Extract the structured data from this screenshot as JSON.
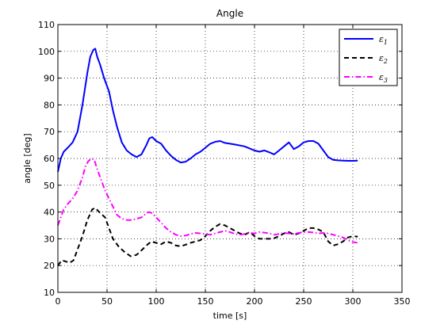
{
  "chart_data": {
    "type": "line",
    "title": "Angle",
    "xlabel": "time [s]",
    "ylabel": "angle [deg]",
    "xlim": [
      0,
      350
    ],
    "ylim": [
      10,
      110
    ],
    "xticks": [
      0,
      50,
      100,
      150,
      200,
      250,
      300,
      350
    ],
    "yticks": [
      10,
      20,
      30,
      40,
      50,
      60,
      70,
      80,
      90,
      100,
      110
    ],
    "grid": true,
    "legend_position": "top-right",
    "series": [
      {
        "name": "ε1",
        "sub": "1",
        "color": "#0000ff",
        "dash": "solid",
        "points": [
          [
            0,
            55
          ],
          [
            3,
            60
          ],
          [
            6,
            62.5
          ],
          [
            10,
            64
          ],
          [
            15,
            66
          ],
          [
            20,
            70
          ],
          [
            25,
            80
          ],
          [
            30,
            92
          ],
          [
            33,
            98
          ],
          [
            36,
            100.5
          ],
          [
            38,
            101
          ],
          [
            40,
            98
          ],
          [
            43,
            95
          ],
          [
            47,
            90
          ],
          [
            52,
            85
          ],
          [
            56,
            78
          ],
          [
            60,
            72
          ],
          [
            65,
            66
          ],
          [
            70,
            63
          ],
          [
            75,
            61.5
          ],
          [
            80,
            60.5
          ],
          [
            85,
            61.5
          ],
          [
            90,
            65
          ],
          [
            93,
            67.5
          ],
          [
            96,
            68
          ],
          [
            100,
            66.5
          ],
          [
            105,
            65.5
          ],
          [
            110,
            63
          ],
          [
            115,
            61
          ],
          [
            120,
            59.5
          ],
          [
            125,
            58.5
          ],
          [
            130,
            58.8
          ],
          [
            135,
            60
          ],
          [
            140,
            61.5
          ],
          [
            145,
            62.5
          ],
          [
            150,
            64
          ],
          [
            155,
            65.5
          ],
          [
            160,
            66.2
          ],
          [
            165,
            66.5
          ],
          [
            170,
            65.8
          ],
          [
            180,
            65.2
          ],
          [
            190,
            64.5
          ],
          [
            200,
            63
          ],
          [
            205,
            62.5
          ],
          [
            210,
            63
          ],
          [
            215,
            62.3
          ],
          [
            220,
            61.5
          ],
          [
            225,
            63
          ],
          [
            230,
            64.5
          ],
          [
            235,
            66
          ],
          [
            240,
            63.5
          ],
          [
            245,
            64.5
          ],
          [
            250,
            66
          ],
          [
            255,
            66.5
          ],
          [
            260,
            66.5
          ],
          [
            265,
            65.5
          ],
          [
            270,
            63
          ],
          [
            275,
            60.5
          ],
          [
            280,
            59.5
          ],
          [
            285,
            59.3
          ],
          [
            290,
            59.2
          ],
          [
            295,
            59.1
          ],
          [
            300,
            59.1
          ],
          [
            305,
            59.2
          ]
        ]
      },
      {
        "name": "ε2",
        "sub": "2",
        "color": "#000000",
        "dash": "dashed",
        "points": [
          [
            0,
            20
          ],
          [
            4,
            22
          ],
          [
            8,
            21.5
          ],
          [
            12,
            21
          ],
          [
            16,
            22
          ],
          [
            20,
            26
          ],
          [
            25,
            31
          ],
          [
            30,
            37
          ],
          [
            35,
            41
          ],
          [
            38,
            41.5
          ],
          [
            42,
            40
          ],
          [
            48,
            38
          ],
          [
            52,
            34
          ],
          [
            56,
            30
          ],
          [
            62,
            27
          ],
          [
            68,
            25
          ],
          [
            74,
            23.5
          ],
          [
            80,
            24
          ],
          [
            86,
            26
          ],
          [
            90,
            27.5
          ],
          [
            95,
            29
          ],
          [
            100,
            28.5
          ],
          [
            105,
            28
          ],
          [
            110,
            29
          ],
          [
            115,
            28.5
          ],
          [
            120,
            27.5
          ],
          [
            125,
            27.2
          ],
          [
            130,
            27.8
          ],
          [
            135,
            28.5
          ],
          [
            140,
            29
          ],
          [
            145,
            29.5
          ],
          [
            150,
            31
          ],
          [
            155,
            33
          ],
          [
            160,
            34.5
          ],
          [
            165,
            35.5
          ],
          [
            170,
            35
          ],
          [
            175,
            34
          ],
          [
            180,
            33
          ],
          [
            185,
            32
          ],
          [
            190,
            31.5
          ],
          [
            195,
            32.5
          ],
          [
            200,
            31
          ],
          [
            205,
            30
          ],
          [
            210,
            30
          ],
          [
            215,
            30
          ],
          [
            220,
            30.2
          ],
          [
            225,
            31
          ],
          [
            230,
            32
          ],
          [
            235,
            32.5
          ],
          [
            240,
            31.5
          ],
          [
            245,
            32
          ],
          [
            250,
            33
          ],
          [
            255,
            34
          ],
          [
            260,
            34
          ],
          [
            265,
            33.5
          ],
          [
            270,
            32.5
          ],
          [
            275,
            29
          ],
          [
            280,
            27.5
          ],
          [
            285,
            28
          ],
          [
            290,
            29
          ],
          [
            295,
            30.5
          ],
          [
            300,
            31
          ],
          [
            305,
            30.8
          ]
        ]
      },
      {
        "name": "ε3",
        "sub": "3",
        "color": "#ff00ff",
        "dash": "dashdot",
        "points": [
          [
            0,
            35
          ],
          [
            3,
            38
          ],
          [
            6,
            41
          ],
          [
            10,
            43
          ],
          [
            15,
            45
          ],
          [
            20,
            48
          ],
          [
            25,
            53
          ],
          [
            28,
            57
          ],
          [
            31,
            59
          ],
          [
            34,
            60
          ],
          [
            37,
            59.5
          ],
          [
            40,
            56
          ],
          [
            44,
            52
          ],
          [
            48,
            48
          ],
          [
            52,
            45
          ],
          [
            56,
            42
          ],
          [
            60,
            39
          ],
          [
            65,
            37.5
          ],
          [
            70,
            37
          ],
          [
            75,
            37
          ],
          [
            80,
            37.5
          ],
          [
            85,
            38
          ],
          [
            90,
            39.5
          ],
          [
            93,
            40
          ],
          [
            96,
            39.5
          ],
          [
            100,
            38
          ],
          [
            105,
            36
          ],
          [
            110,
            34
          ],
          [
            115,
            32.5
          ],
          [
            120,
            31.5
          ],
          [
            125,
            31
          ],
          [
            130,
            31.2
          ],
          [
            135,
            31.8
          ],
          [
            140,
            32.2
          ],
          [
            145,
            32
          ],
          [
            150,
            31.8
          ],
          [
            155,
            31.5
          ],
          [
            160,
            32
          ],
          [
            165,
            32.5
          ],
          [
            170,
            33
          ],
          [
            175,
            32.5
          ],
          [
            180,
            31.8
          ],
          [
            185,
            31.5
          ],
          [
            190,
            31.8
          ],
          [
            195,
            32.2
          ],
          [
            200,
            32
          ],
          [
            205,
            32.5
          ],
          [
            210,
            32.3
          ],
          [
            215,
            32
          ],
          [
            220,
            31.5
          ],
          [
            225,
            31.8
          ],
          [
            230,
            32.2
          ],
          [
            235,
            32
          ],
          [
            240,
            31.8
          ],
          [
            245,
            32.2
          ],
          [
            250,
            32.5
          ],
          [
            255,
            32.5
          ],
          [
            260,
            32.3
          ],
          [
            265,
            32
          ],
          [
            270,
            32.2
          ],
          [
            275,
            32
          ],
          [
            280,
            31.5
          ],
          [
            285,
            31
          ],
          [
            290,
            30.5
          ],
          [
            295,
            29.5
          ],
          [
            300,
            28.8
          ],
          [
            305,
            28.5
          ]
        ]
      }
    ]
  }
}
